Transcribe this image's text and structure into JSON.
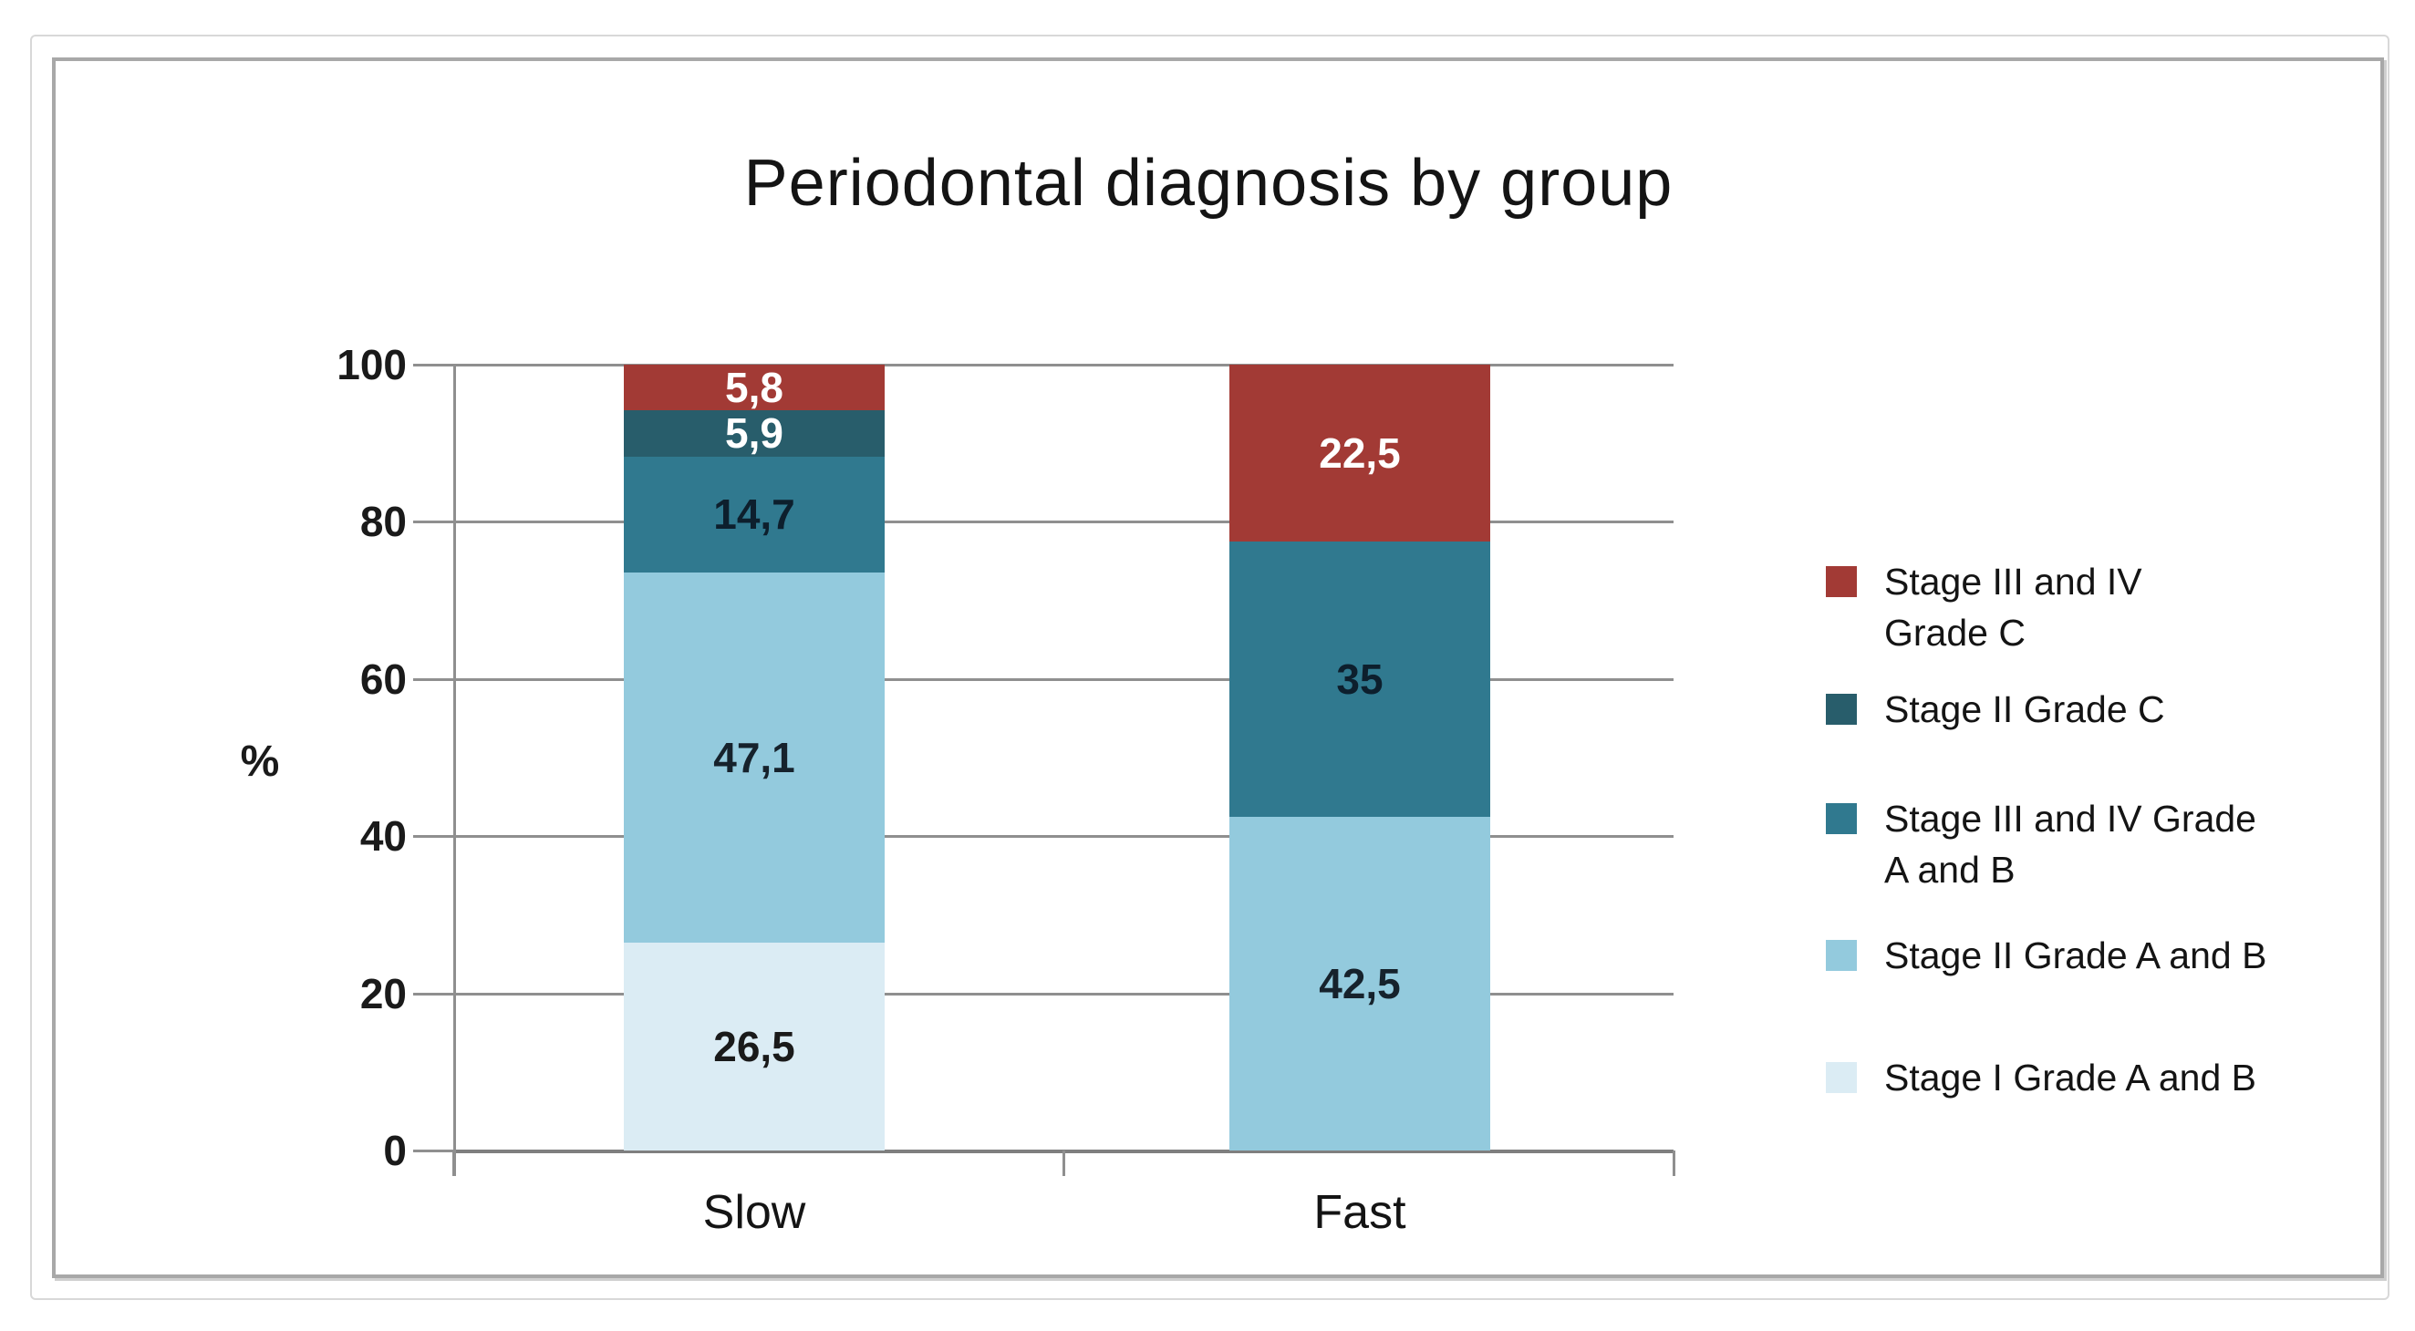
{
  "chart_data": {
    "type": "bar",
    "stacked": true,
    "title": "Periodontal diagnosis by group",
    "ylabel": "%",
    "ylim": [
      0,
      100
    ],
    "yticks": [
      "100",
      "80",
      "60",
      "40",
      "20",
      "0"
    ],
    "ytick_values": [
      100,
      80,
      60,
      40,
      20,
      0
    ],
    "grid": true,
    "legend_position": "right",
    "categories": [
      "Slow",
      "Fast"
    ],
    "series": [
      {
        "name": "Stage I Grade A and B",
        "color": "#dbecf4",
        "values": [
          26.5,
          0
        ],
        "labels": [
          "26,5",
          ""
        ],
        "label_color": "#1a1a1a"
      },
      {
        "name": "Stage II Grade A and B",
        "color": "#93cadd",
        "values": [
          47.1,
          42.5
        ],
        "labels": [
          "47,1",
          "42,5"
        ],
        "label_color": "#16222c"
      },
      {
        "name": "Stage III and IV Grade A and B",
        "color": "#30798f",
        "values": [
          14.7,
          35
        ],
        "labels": [
          "14,7",
          "35"
        ],
        "label_color": "#0d1f2d"
      },
      {
        "name": "Stage II Grade C",
        "color": "#285d6b",
        "values": [
          5.9,
          0
        ],
        "labels": [
          "5,9",
          ""
        ],
        "label_color": "#ffffff"
      },
      {
        "name": "Stage III and IV Grade C",
        "color": "#a23a35",
        "values": [
          5.8,
          22.5
        ],
        "labels": [
          "5,8",
          "22,5"
        ],
        "label_color": "#ffffff"
      }
    ]
  },
  "legend": {
    "items": [
      {
        "lines": [
          "Stage III and IV",
          "Grade C"
        ],
        "color": "#a23a35"
      },
      {
        "lines": [
          "Stage II Grade C"
        ],
        "color": "#285d6b"
      },
      {
        "lines": [
          "Stage III and IV Grade",
          "A and B"
        ],
        "color": "#30798f"
      },
      {
        "lines": [
          "Stage II Grade A and B"
        ],
        "color": "#93cadd"
      },
      {
        "lines": [
          "Stage I Grade A and B"
        ],
        "color": "#dbecf4"
      }
    ]
  },
  "colors": {
    "gridline": "#8f8f8f",
    "frame": "#a8a8a8",
    "outer_border": "#d8d8d8",
    "text": "#141414"
  }
}
